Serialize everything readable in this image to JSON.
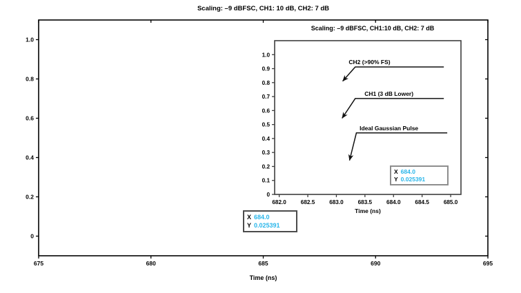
{
  "figure": {
    "background": "#ffffff",
    "accent_cyan": "#29B6EA",
    "axis_color": "#000000",
    "cursor_border_main": "#4b4b4b",
    "cursor_border_inset": "#8d8d8d"
  },
  "chart_data": [
    {
      "id": "main",
      "type": "line",
      "title": "Scaling: –9 dBFSC, CH1: 10 dB, CH2: 7 dB",
      "xlabel": "Time (ns)",
      "ylabel": "",
      "xlim": [
        675,
        695
      ],
      "ylim": [
        -0.1,
        1.1
      ],
      "xticks": [
        675,
        680,
        685,
        690,
        695
      ],
      "xtick_labels": [
        "675",
        "680",
        "685",
        "690",
        "695"
      ],
      "yticks": [
        0,
        0.2,
        0.4,
        0.6,
        0.8,
        1.0
      ],
      "ytick_labels": [
        "0",
        "0.2",
        "0.4",
        "0.6",
        "0.8",
        "1.0"
      ],
      "grid": false,
      "legend": null,
      "series": [],
      "cursor_readout": {
        "x_label": "X",
        "x_value": "684.0",
        "y_label": "Y",
        "y_value": "0.025391"
      }
    },
    {
      "id": "inset",
      "type": "line",
      "title": "Scaling: –9 dBFSC, CH1:10 dB, CH2: 7 dB",
      "xlabel": "Time (ns)",
      "ylabel": "",
      "xlim": [
        681.92,
        685.18
      ],
      "ylim": [
        0,
        1.1
      ],
      "xticks": [
        682.0,
        682.5,
        683.0,
        683.5,
        684.0,
        684.5,
        685.0
      ],
      "xtick_labels": [
        "682.0",
        "682.5",
        "683.0",
        "683.5",
        "684.0",
        "684.5",
        "685.0"
      ],
      "yticks": [
        0,
        0.1,
        0.2,
        0.3,
        0.4,
        0.5,
        0.6,
        0.7,
        0.8,
        0.9,
        1.0
      ],
      "ytick_labels": [
        "0",
        "0.1",
        "0.2",
        "0.3",
        "0.4",
        "0.5",
        "0.6",
        "0.7",
        "0.8",
        "0.9",
        "1.0"
      ],
      "grid": false,
      "legend": null,
      "series": [],
      "annotations": [
        {
          "label": "CH2 (>90% FS)",
          "text_x": 683.58,
          "line_y": 0.912,
          "line_x": [
            683.33,
            684.88
          ],
          "arrow_tip": [
            683.11,
            0.81
          ]
        },
        {
          "label": "CH1 (3 dB Lower)",
          "text_x": 683.92,
          "line_y": 0.686,
          "line_x": [
            683.33,
            684.88
          ],
          "arrow_tip": [
            683.1,
            0.545
          ]
        },
        {
          "label": "Ideal Gaussian Pulse",
          "text_x": 683.92,
          "line_y": 0.44,
          "line_x": [
            683.35,
            684.94
          ],
          "arrow_tip": [
            683.23,
            0.243
          ]
        }
      ],
      "cursor_readout": {
        "x_label": "X",
        "x_value": "684.0",
        "y_label": "Y",
        "y_value": "0.025391"
      }
    }
  ]
}
